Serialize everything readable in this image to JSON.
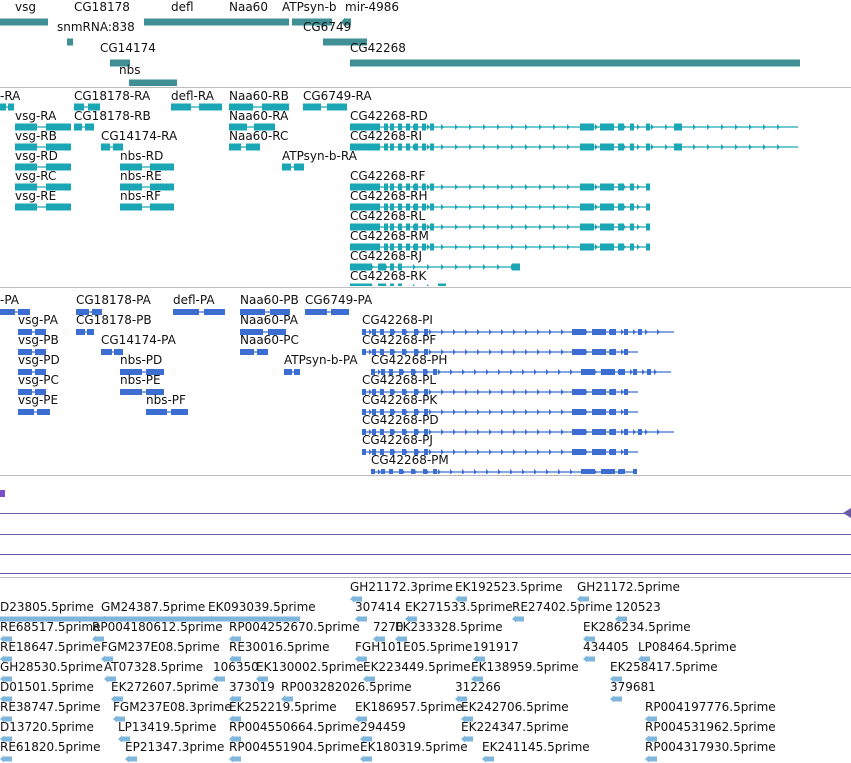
{
  "colors": {
    "gene": "#3f8f94",
    "transcript": "#1aa6b4",
    "protein": "#3c6ed1",
    "line_purple": "#6a5aa8",
    "est": "#7fb6dc",
    "separator": "#bdbdbd"
  },
  "gene_track": {
    "genes": [
      {
        "label": "vsg"
      },
      {
        "label": "CG18178"
      },
      {
        "label": "defl"
      },
      {
        "label": "Naa60"
      },
      {
        "label": "ATPsyn-b"
      },
      {
        "label": "mir-4986"
      },
      {
        "label": "snmRNA:838"
      },
      {
        "label": "CG6749"
      },
      {
        "label": "CG14174"
      },
      {
        "label": "CG42268"
      },
      {
        "label": "nbs"
      }
    ]
  },
  "transcript_track": {
    "transcripts": [
      {
        "label": "-RA"
      },
      {
        "label": "CG18178-RA"
      },
      {
        "label": "defl-RA"
      },
      {
        "label": "Naa60-RB"
      },
      {
        "label": "CG6749-RA"
      },
      {
        "label": "vsg-RA"
      },
      {
        "label": "CG18178-RB"
      },
      {
        "label": "Naa60-RA"
      },
      {
        "label": "CG42268-RD"
      },
      {
        "label": "vsg-RB"
      },
      {
        "label": "CG14174-RA"
      },
      {
        "label": "Naa60-RC"
      },
      {
        "label": "CG42268-RI"
      },
      {
        "label": "vsg-RD"
      },
      {
        "label": "nbs-RD"
      },
      {
        "label": "ATPsyn-b-RA"
      },
      {
        "label": "vsg-RC"
      },
      {
        "label": "nbs-RE"
      },
      {
        "label": "CG42268-RF"
      },
      {
        "label": "vsg-RE"
      },
      {
        "label": "nbs-RF"
      },
      {
        "label": "CG42268-RH"
      },
      {
        "label": "CG42268-RL"
      },
      {
        "label": "CG42268-RM"
      },
      {
        "label": "CG42268-RJ"
      },
      {
        "label": "CG42268-RK"
      }
    ]
  },
  "protein_track": {
    "proteins": [
      {
        "label": "-PA"
      },
      {
        "label": "CG18178-PA"
      },
      {
        "label": "defl-PA"
      },
      {
        "label": "Naa60-PB"
      },
      {
        "label": "CG6749-PA"
      },
      {
        "label": "vsg-PA"
      },
      {
        "label": "CG18178-PB"
      },
      {
        "label": "Naa60-PA"
      },
      {
        "label": "CG42268-PI"
      },
      {
        "label": "vsg-PB"
      },
      {
        "label": "CG14174-PA"
      },
      {
        "label": "Naa60-PC"
      },
      {
        "label": "CG42268-PF"
      },
      {
        "label": "vsg-PD"
      },
      {
        "label": "nbs-PD"
      },
      {
        "label": "ATPsyn-b-PA"
      },
      {
        "label": "CG42268-PH"
      },
      {
        "label": "vsg-PC"
      },
      {
        "label": "nbs-PE"
      },
      {
        "label": "CG42268-PL"
      },
      {
        "label": "vsg-PE"
      },
      {
        "label": "nbs-PF"
      },
      {
        "label": "CG42268-PK"
      },
      {
        "label": "CG42268-PD"
      },
      {
        "label": "CG42268-PJ"
      },
      {
        "label": "CG42268-PM"
      }
    ]
  },
  "est_track": {
    "ests": [
      {
        "label": "GH21172.3prime"
      },
      {
        "label": "EK192523.5prime"
      },
      {
        "label": "GH21172.5prime"
      },
      {
        "label": "D23805.5prime"
      },
      {
        "label": "GM24387.5prime"
      },
      {
        "label": "EK093039.5prime"
      },
      {
        "label": "307414"
      },
      {
        "label": "EK271533.5prime"
      },
      {
        "label": "RE27402.5prime"
      },
      {
        "label": "120523"
      },
      {
        "label": "RE68517.5prime"
      },
      {
        "label": "RP004180612.5prime"
      },
      {
        "label": "RP004252670.5prime"
      },
      {
        "label": "7270"
      },
      {
        "label": "EK233328.5prime"
      },
      {
        "label": "EK286234.5prime"
      },
      {
        "label": "RE18647.5prime"
      },
      {
        "label": "FGM237E08.5prime"
      },
      {
        "label": "RE30016.5prime"
      },
      {
        "label": "FGH101E05.5prime"
      },
      {
        "label": "191917"
      },
      {
        "label": "434405"
      },
      {
        "label": "LP08464.5prime"
      },
      {
        "label": "GH28530.5prime"
      },
      {
        "label": "AT07328.5prime"
      },
      {
        "label": "106350"
      },
      {
        "label": "EK130002.5prime"
      },
      {
        "label": "EK223449.5prime"
      },
      {
        "label": "EK138959.5prime"
      },
      {
        "label": "EK258417.5prime"
      },
      {
        "label": "D01501.5prime"
      },
      {
        "label": "EK272607.5prime"
      },
      {
        "label": "373019"
      },
      {
        "label": "RP003282026.5prime"
      },
      {
        "label": "312266"
      },
      {
        "label": "379681"
      },
      {
        "label": "RE38747.5prime"
      },
      {
        "label": "FGM237E08.3prime"
      },
      {
        "label": "EK252219.5prime"
      },
      {
        "label": "EK186957.5prime"
      },
      {
        "label": "EK242706.5prime"
      },
      {
        "label": "RP004197776.5prime"
      },
      {
        "label": "D13720.5prime"
      },
      {
        "label": "LP13419.5prime"
      },
      {
        "label": "RP004550664.5prime"
      },
      {
        "label": "294459"
      },
      {
        "label": "EK224347.5prime"
      },
      {
        "label": "RP004531962.5prime"
      },
      {
        "label": "RE61820.5prime"
      },
      {
        "label": "EP21347.3prime"
      },
      {
        "label": "RP004551904.5prime"
      },
      {
        "label": "EK180319.5prime"
      },
      {
        "label": "EK241145.5prime"
      },
      {
        "label": "RP004317930.5prime"
      }
    ]
  }
}
